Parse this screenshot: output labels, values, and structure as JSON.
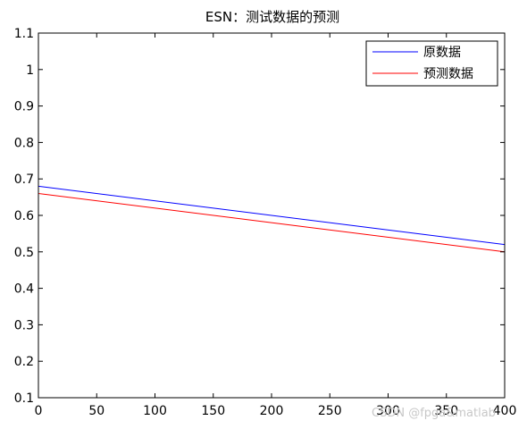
{
  "chart_data": {
    "type": "line",
    "title": "ESN：测试数据的预测",
    "xlabel": "",
    "ylabel": "",
    "xlim": [
      0,
      400
    ],
    "ylim": [
      0.1,
      1.1
    ],
    "xticks": [
      0,
      50,
      100,
      150,
      200,
      250,
      300,
      350,
      400
    ],
    "yticks": [
      0.1,
      0.2,
      0.3,
      0.4,
      0.5,
      0.6,
      0.7,
      0.8,
      0.9,
      1.0,
      1.1
    ],
    "xtick_labels": [
      "0",
      "50",
      "100",
      "150",
      "200",
      "250",
      "300",
      "350",
      "400"
    ],
    "ytick_labels": [
      "0.1",
      "0.2",
      "0.3",
      "0.4",
      "0.5",
      "0.6",
      "0.7",
      "0.8",
      "0.9",
      "1",
      "1.1"
    ],
    "grid": false,
    "legend_position": "top-right",
    "series": [
      {
        "name": "原数据",
        "color": "#0000ff",
        "x": [
          0,
          400
        ],
        "y": [
          0.68,
          0.52
        ]
      },
      {
        "name": "预测数据",
        "color": "#ff0000",
        "x": [
          0,
          400
        ],
        "y": [
          0.66,
          0.5
        ]
      }
    ]
  },
  "watermark": "CSDN @fpga&matlab"
}
